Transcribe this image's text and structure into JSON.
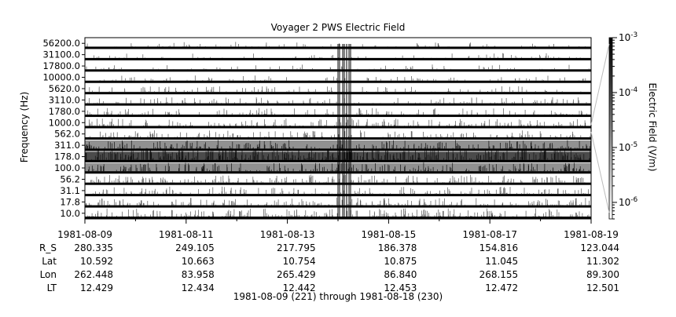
{
  "chart_data": {
    "type": "heatmap",
    "title": "Voyager 2 PWS Electric Field",
    "ylabel": "Frequency (Hz)",
    "colorbar_label": "Electric Field (V/m)",
    "colorbar_scale": "log",
    "colorbar_range": [
      5e-07,
      0.001
    ],
    "colorbar_ticks": [
      {
        "value": 0.001,
        "mantissa": "10",
        "exp": "-3"
      },
      {
        "value": 0.0001,
        "mantissa": "10",
        "exp": "-4"
      },
      {
        "value": 1e-05,
        "mantissa": "10",
        "exp": "-5"
      },
      {
        "value": 1e-06,
        "mantissa": "10",
        "exp": "-6"
      }
    ],
    "channels": [
      "10.0",
      "17.8",
      "31.1",
      "56.2",
      "100.0",
      "178.0",
      "311.0",
      "562.0",
      "1000.0",
      "1780.0",
      "3110.0",
      "5620.0",
      "10000.0",
      "17800.0",
      "31100.0",
      "56200.0"
    ],
    "channel_intensity": [
      0.5,
      0.45,
      0.4,
      0.45,
      0.55,
      0.9,
      0.55,
      0.35,
      0.4,
      0.3,
      0.25,
      0.2,
      0.15,
      0.1,
      0.1,
      0.08
    ],
    "x_range": [
      "1981-08-09",
      "1981-08-19"
    ],
    "x_ticks": [
      "1981-08-09",
      "1981-08-11",
      "1981-08-13",
      "1981-08-15",
      "1981-08-17",
      "1981-08-19"
    ],
    "ephemeris": [
      {
        "label": "R_S",
        "values": [
          "280.335",
          "249.105",
          "217.795",
          "186.378",
          "154.816",
          "123.044"
        ]
      },
      {
        "label": "Lat",
        "values": [
          "10.592",
          "10.663",
          "10.754",
          "10.875",
          "11.045",
          "11.302"
        ]
      },
      {
        "label": "Lon",
        "values": [
          "262.448",
          "83.958",
          "265.429",
          "86.840",
          "268.155",
          "89.300"
        ]
      },
      {
        "label": "LT",
        "values": [
          "12.429",
          "12.434",
          "12.442",
          "12.453",
          "12.472",
          "12.501"
        ]
      }
    ],
    "date_range_caption": "1981-08-09 (221) through 1981-08-18 (230)",
    "grid": false,
    "legend": "none"
  }
}
